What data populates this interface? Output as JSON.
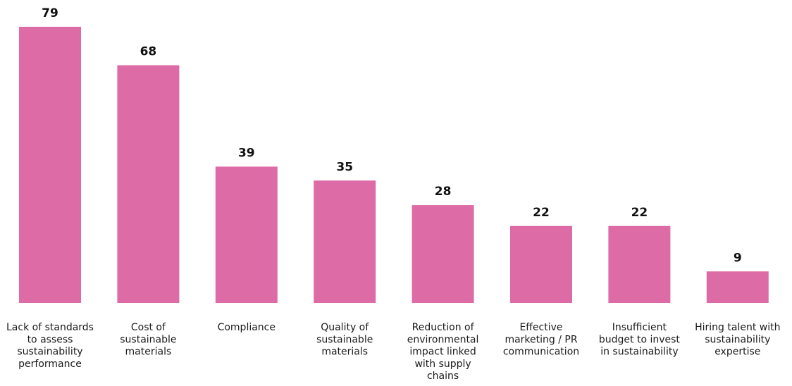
{
  "chart_data": {
    "type": "bar",
    "title": "",
    "xlabel": "",
    "ylabel": "",
    "ylim": [
      0,
      79
    ],
    "grid": false,
    "legend": "none",
    "bar_color": "#dd6ca6",
    "categories": [
      "Lack of standards to assess sustainability performance",
      "Cost of sustainable materials",
      "Compliance",
      "Quality of sustainable materials",
      "Reduction of environmental impact linked with supply chains",
      "Effective marketing / PR communication",
      "Insufficient budget to invest in sustainability",
      "Hiring talent with sustainability expertise"
    ],
    "category_lines": [
      [
        "Lack of standards",
        "to assess",
        "sustainability",
        "performance"
      ],
      [
        "Cost of",
        "sustainable",
        "materials"
      ],
      [
        "Compliance"
      ],
      [
        "Quality of",
        "sustainable",
        "materials"
      ],
      [
        "Reduction of",
        "environmental",
        "impact linked",
        "with supply",
        "chains"
      ],
      [
        "Effective",
        "marketing / PR",
        "communication"
      ],
      [
        "Insufficient",
        "budget to invest",
        "in sustainability"
      ],
      [
        "Hiring talent with",
        "sustainability",
        "expertise"
      ]
    ],
    "values": [
      79,
      68,
      39,
      35,
      28,
      22,
      22,
      9
    ]
  }
}
